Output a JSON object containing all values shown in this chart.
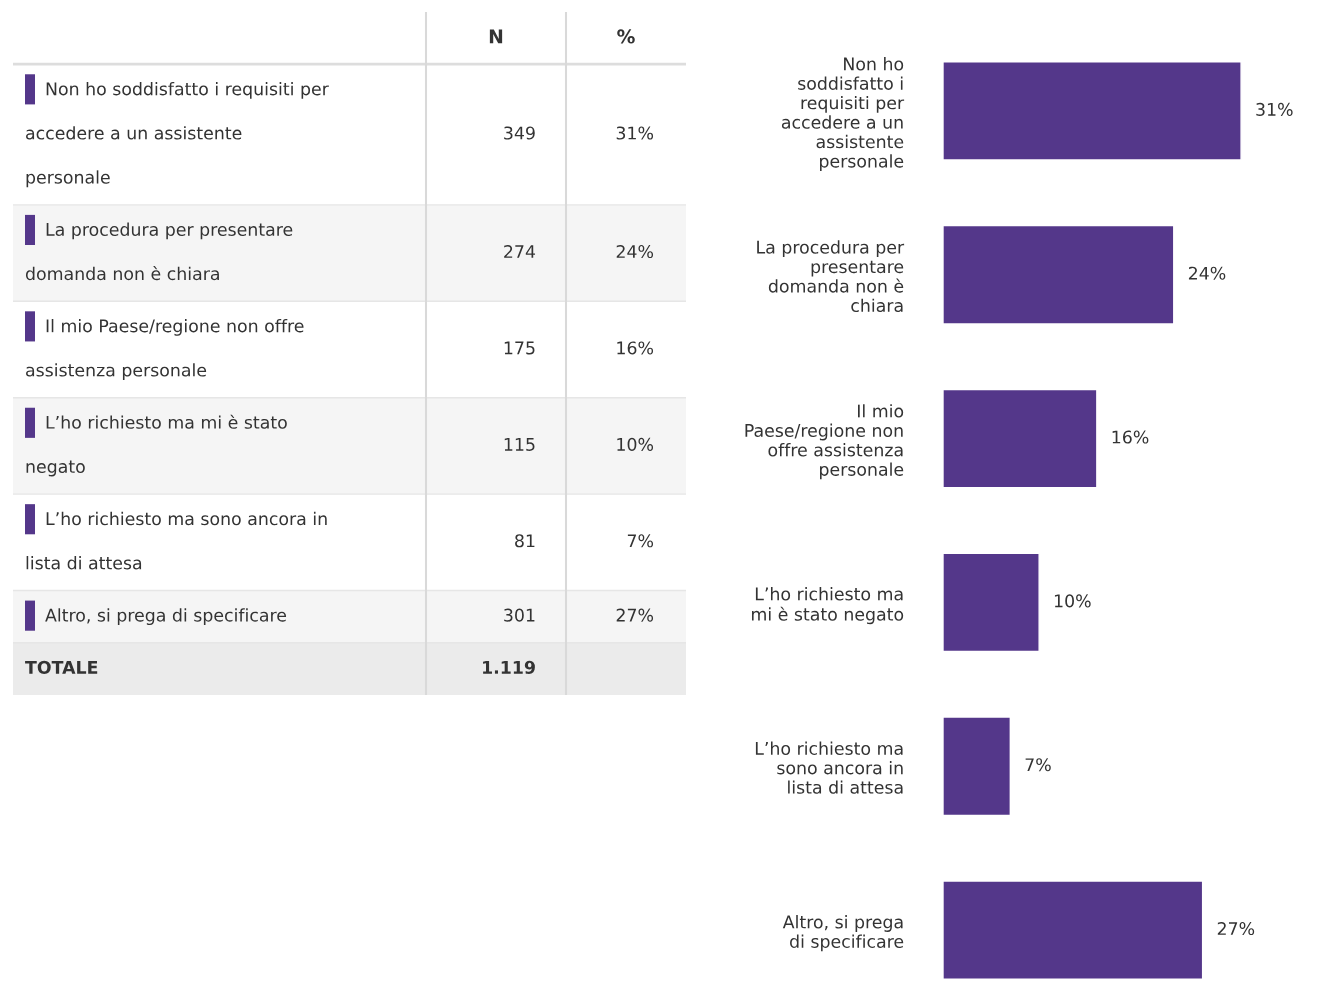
{
  "chart_data": [
    {
      "type": "other",
      "annotations": [
        "N",
        "%",
        "Non ho soddisfatto i requisiti per accedere a un assistente personale",
        "349",
        "31%",
        "La procedura per presentare domanda non è chiara",
        "274",
        "24%",
        "Il mio Paese/regione non offre assistenza personale",
        "175",
        "16%",
        "L’ho richiesto ma mi è stato negato",
        "115",
        "10%",
        "L’ho richiesto ma sono ancora in lista di attesa",
        "81",
        "7%",
        "Altro, si prega di specificare",
        "301",
        "27%",
        "TOTALE",
        "1.119"
      ]
    },
    {
      "type": "bar",
      "orientation": "horizontal",
      "categories": [
        "Non ho soddisfatto i requisiti per accedere a un assistente personale",
        "La procedura per presentare domanda non è chiara",
        "Il mio Paese/regione non offre assistenza personale",
        "L’ho richiesto ma mi è stato negato",
        "L’ho richiesto ma sono ancora in lista di attesa",
        "Altro, si prega di specificare"
      ],
      "values": [
        31,
        24,
        16,
        10,
        7,
        27
      ],
      "value_labels": [
        "31%",
        "24%",
        "16%",
        "10%",
        "7%",
        "27%"
      ],
      "color": "#54378a",
      "tick_labels": "y"
    }
  ]
}
